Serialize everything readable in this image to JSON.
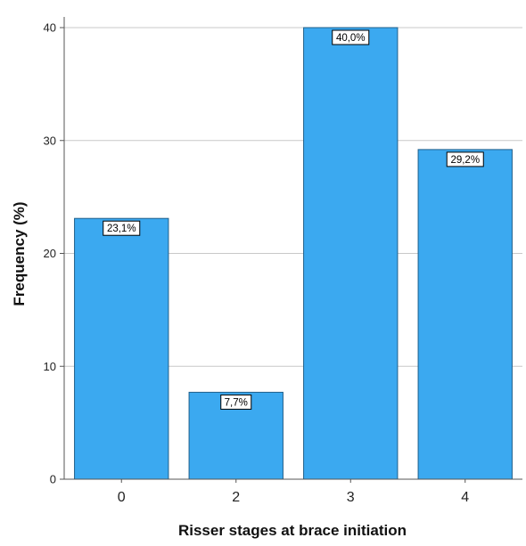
{
  "chart_data": {
    "type": "bar",
    "categories": [
      "0",
      "2",
      "3",
      "4"
    ],
    "values": [
      23.1,
      7.7,
      40.0,
      29.2
    ],
    "data_labels": [
      "23,1%",
      "7,7%",
      "40,0%",
      "29,2%"
    ],
    "title": "",
    "xlabel": "Risser stages at brace initiation",
    "ylabel": "Frequency (%)",
    "ylim": [
      0,
      40
    ],
    "yticks": [
      0,
      10,
      20,
      30,
      40
    ],
    "grid": true,
    "colors": {
      "bar": "#3ba9f0",
      "bar_edge": "#1f5f8a",
      "grid": "#c8c8c8",
      "axis": "#555555"
    }
  }
}
